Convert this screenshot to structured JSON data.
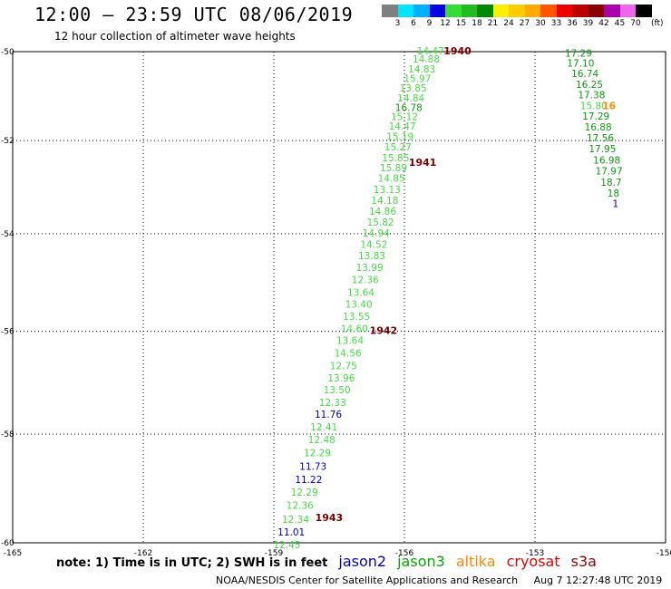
{
  "header": {
    "title": "12:00 – 23:59 UTC 08/06/2019",
    "subtitle": "12 hour collection of altimeter wave heights"
  },
  "color_scale": {
    "labels": [
      "3",
      "6",
      "9",
      "12",
      "15",
      "18",
      "21",
      "24",
      "27",
      "30",
      "33",
      "36",
      "39",
      "42",
      "45",
      "70"
    ],
    "colors": [
      "#7f7f7f",
      "#00e5ff",
      "#00b0ff",
      "#0000e0",
      "#33dd33",
      "#22bb22",
      "#008800",
      "#ffee00",
      "#ffcc00",
      "#ffaa00",
      "#ff5500",
      "#ee0000",
      "#bb0000",
      "#880000",
      "#aa00aa",
      "#ee66ee",
      "#000000"
    ],
    "unit": "(ft)"
  },
  "map": {
    "lon_labels": [
      "-165",
      "-162",
      "-159",
      "-156",
      "-153",
      "-150"
    ],
    "lat_labels": [
      "-50",
      "-52",
      "-54",
      "-56",
      "-58",
      "-60"
    ],
    "lon_range": [
      -165,
      -150
    ],
    "lat_range": [
      -50,
      -60
    ]
  },
  "tracks": [
    {
      "satellite": "jason3",
      "points": [
        {
          "lat": -50.0,
          "lon": -155.4,
          "value": "14.47"
        },
        {
          "lat": -50.19,
          "lon": -155.5,
          "value": "14.88"
        },
        {
          "lat": -50.41,
          "lon": -155.6,
          "value": "14.83"
        },
        {
          "lat": -50.63,
          "lon": -155.7,
          "value": "15.97"
        },
        {
          "lat": -50.85,
          "lon": -155.8,
          "value": "13.85"
        },
        {
          "lat": -51.07,
          "lon": -155.85,
          "value": "14.84"
        },
        {
          "lat": -51.28,
          "lon": -155.9,
          "value": "16.78"
        },
        {
          "lat": -51.49,
          "lon": -156.0,
          "value": "15.12"
        },
        {
          "lat": -51.7,
          "lon": -156.05,
          "value": "14.47"
        },
        {
          "lat": -51.93,
          "lon": -156.1,
          "value": "15.19"
        },
        {
          "lat": -52.16,
          "lon": -156.15,
          "value": "15.27"
        },
        {
          "lat": -52.39,
          "lon": -156.2,
          "value": "15.85"
        },
        {
          "lat": -52.61,
          "lon": -156.25,
          "value": "15.89"
        },
        {
          "lat": -52.84,
          "lon": -156.3,
          "value": "14.85"
        },
        {
          "lat": -53.08,
          "lon": -156.4,
          "value": "13.13"
        },
        {
          "lat": -53.31,
          "lon": -156.45,
          "value": "14.18"
        },
        {
          "lat": -53.54,
          "lon": -156.5,
          "value": "14.86"
        },
        {
          "lat": -53.77,
          "lon": -156.55,
          "value": "15.82"
        },
        {
          "lat": -54.0,
          "lon": -156.65,
          "value": "14.94"
        },
        {
          "lat": -54.24,
          "lon": -156.7,
          "value": "14.52"
        },
        {
          "lat": -54.48,
          "lon": -156.75,
          "value": "13.83"
        },
        {
          "lat": -54.72,
          "lon": -156.8,
          "value": "13.99"
        },
        {
          "lat": -54.97,
          "lon": -156.9,
          "value": "12.36"
        },
        {
          "lat": -55.23,
          "lon": -157.0,
          "value": "13.64"
        },
        {
          "lat": -55.47,
          "lon": -157.05,
          "value": "13.40"
        },
        {
          "lat": -55.72,
          "lon": -157.1,
          "value": "13.55"
        },
        {
          "lat": -55.96,
          "lon": -157.15,
          "value": "14.60"
        },
        {
          "lat": -56.2,
          "lon": -157.25,
          "value": "13.64"
        },
        {
          "lat": -56.45,
          "lon": -157.3,
          "value": "14.56"
        },
        {
          "lat": -56.7,
          "lon": -157.4,
          "value": "12.75"
        },
        {
          "lat": -56.94,
          "lon": -157.45,
          "value": "13.96"
        },
        {
          "lat": -57.17,
          "lon": -157.55,
          "value": "13.50"
        },
        {
          "lat": -57.41,
          "lon": -157.65,
          "value": "12.33"
        },
        {
          "lat": -57.64,
          "lon": -157.75,
          "value": "11.76"
        },
        {
          "lat": -57.88,
          "lon": -157.85,
          "value": "12.41"
        },
        {
          "lat": -58.12,
          "lon": -157.9,
          "value": "12.48"
        },
        {
          "lat": -58.37,
          "lon": -158.0,
          "value": "12.29"
        },
        {
          "lat": -58.62,
          "lon": -158.1,
          "value": "11.73"
        },
        {
          "lat": -58.86,
          "lon": -158.2,
          "value": "11.22"
        },
        {
          "lat": -59.1,
          "lon": -158.3,
          "value": "12.29"
        },
        {
          "lat": -59.34,
          "lon": -158.4,
          "value": "12.36"
        },
        {
          "lat": -59.59,
          "lon": -158.5,
          "value": "12.34"
        },
        {
          "lat": -59.82,
          "lon": -158.6,
          "value": "11.01"
        },
        {
          "lat": -60.05,
          "lon": -158.7,
          "value": "12.45"
        }
      ]
    },
    {
      "satellite": "jason3",
      "points": [
        {
          "lat": -50.05,
          "lon": -152.0,
          "value": "17.29"
        },
        {
          "lat": -50.28,
          "lon": -151.95,
          "value": "17.10"
        },
        {
          "lat": -50.52,
          "lon": -151.85,
          "value": "16.74"
        },
        {
          "lat": -50.76,
          "lon": -151.75,
          "value": "16.25"
        },
        {
          "lat": -51.0,
          "lon": -151.7,
          "value": "17.38"
        },
        {
          "lat": -51.24,
          "lon": -151.65,
          "value": "15.80"
        },
        {
          "lat": -51.48,
          "lon": -151.6,
          "value": "17.29"
        },
        {
          "lat": -51.72,
          "lon": -151.55,
          "value": "16.88"
        },
        {
          "lat": -51.96,
          "lon": -151.5,
          "value": "17.56"
        },
        {
          "lat": -52.2,
          "lon": -151.45,
          "value": "17.95"
        },
        {
          "lat": -52.44,
          "lon": -151.35,
          "value": "16.98"
        },
        {
          "lat": -52.68,
          "lon": -151.3,
          "value": "17.97"
        },
        {
          "lat": -52.92,
          "lon": -151.25,
          "value": "18.7"
        },
        {
          "lat": -53.16,
          "lon": -151.2,
          "value": "18"
        },
        {
          "lat": -53.38,
          "lon": -151.15,
          "value": "1"
        }
      ]
    },
    {
      "satellite": "altika",
      "points": [
        {
          "lat": -51.24,
          "lon": -151.3,
          "value": "16"
        }
      ]
    }
  ],
  "time_marks": [
    {
      "lat": -50.0,
      "lon": -155.1,
      "value": "1940"
    },
    {
      "lat": -52.49,
      "lon": -155.9,
      "value": "1941"
    },
    {
      "lat": -56.0,
      "lon": -156.8,
      "value": "1942"
    },
    {
      "lat": -59.56,
      "lon": -158.05,
      "value": "1943"
    }
  ],
  "footer": {
    "note": "note: 1) Time is in UTC; 2) SWH is in feet",
    "satellites": [
      {
        "name": "jason2",
        "color": "#0000cc"
      },
      {
        "name": "jason3",
        "color": "#00aa00"
      },
      {
        "name": "altika",
        "color": "#ff8800"
      },
      {
        "name": "cryosat",
        "color": "#ee0000"
      },
      {
        "name": "s3a",
        "color": "#990000"
      }
    ],
    "credit": "NOAA/NESDIS Center for Satellite Applications and Research",
    "timestamp": "Aug  7 12:27:48 UTC 2019"
  }
}
